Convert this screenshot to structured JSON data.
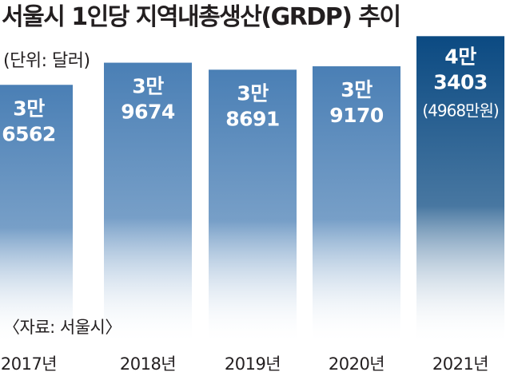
{
  "chart_data": {
    "type": "bar",
    "title": "서울시 1인당 지역내총생산(GRDP) 추이",
    "unit_label": "(단위: 달러)",
    "source": "〈자료: 서울시〉",
    "categories": [
      "2017년",
      "2018년",
      "2019년",
      "2020년",
      "2021년"
    ],
    "values": [
      36562,
      39674,
      38691,
      39170,
      43403
    ],
    "value_labels": [
      [
        "3만",
        "6562"
      ],
      [
        "3만",
        "9674"
      ],
      [
        "3만",
        "8691"
      ],
      [
        "3만",
        "9170"
      ],
      [
        "4만",
        "3403"
      ]
    ],
    "annotations": [
      {
        "category": "2021년",
        "text": "(4968만원)"
      }
    ],
    "highlight_category": "2021년",
    "colors": {
      "bar_top": "#4a7fb5",
      "highlight_top": "#0b4a82",
      "bar_bottom": "#ffffff"
    },
    "ylim": [
      0,
      44000
    ],
    "grid": false,
    "legend": "none"
  }
}
